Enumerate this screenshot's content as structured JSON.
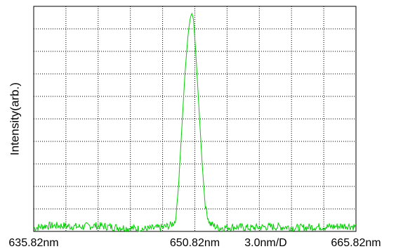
{
  "chart_data": {
    "type": "line",
    "ylabel": "Intensity(arb.)",
    "xlabel": "",
    "x_ticks": [
      {
        "label": "635.82nm",
        "value": 635.82
      },
      {
        "label": "650.82nm",
        "value": 650.82
      },
      {
        "label": "665.82nm",
        "value": 665.82
      }
    ],
    "scale_annotation": "3.0nm/D",
    "xlim": [
      635.82,
      665.82
    ],
    "ylim": [
      0,
      10
    ],
    "grid": {
      "x_divisions": 10,
      "y_divisions": 10,
      "style": "dotted"
    },
    "y_tick_labels": "none",
    "series": [
      {
        "color": "#00cc00",
        "peak_x": 650.55,
        "peak_y": 9.7,
        "noise_floor": 0.15,
        "x": [
          635.82,
          637.0,
          638.5,
          640.0,
          641.5,
          643.0,
          644.5,
          646.0,
          647.5,
          648.5,
          649.0,
          649.3,
          649.6,
          649.9,
          650.2,
          650.4,
          650.55,
          650.7,
          650.9,
          651.2,
          651.5,
          651.8,
          652.2,
          653.0,
          654.5,
          656.0,
          657.5,
          659.0,
          660.5,
          662.0,
          663.5,
          665.0,
          665.82
        ],
        "y": [
          0.1,
          0.2,
          0.2,
          0.15,
          0.2,
          0.15,
          0.1,
          0.05,
          0.1,
          0.2,
          0.4,
          2.0,
          4.5,
          7.0,
          8.8,
          9.5,
          9.7,
          9.4,
          8.0,
          5.5,
          3.0,
          1.0,
          0.3,
          0.1,
          0.15,
          0.1,
          0.15,
          0.15,
          0.1,
          0.15,
          0.15,
          0.2,
          0.15
        ]
      }
    ]
  }
}
